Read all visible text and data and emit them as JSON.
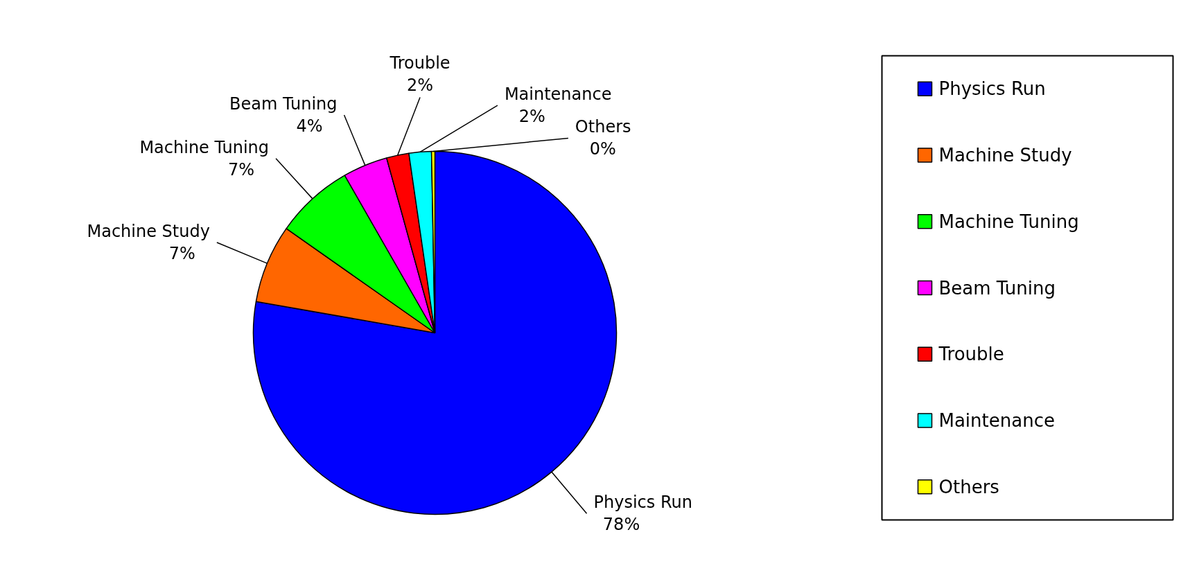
{
  "chart_data": {
    "type": "pie",
    "categories": [
      "Physics Run",
      "Machine Study",
      "Machine Tuning",
      "Beam Tuning",
      "Trouble",
      "Maintenance",
      "Others"
    ],
    "values": [
      78,
      7,
      7,
      4,
      2,
      2,
      0.3
    ],
    "value_labels": [
      "78%",
      "7%",
      "7%",
      "4%",
      "2%",
      "2%",
      "0%"
    ],
    "colors": [
      "#0000ff",
      "#ff6600",
      "#00ff00",
      "#ff00ff",
      "#ff0000",
      "#00ffff",
      "#ffff00"
    ],
    "data_labels": true,
    "legend": "right"
  }
}
